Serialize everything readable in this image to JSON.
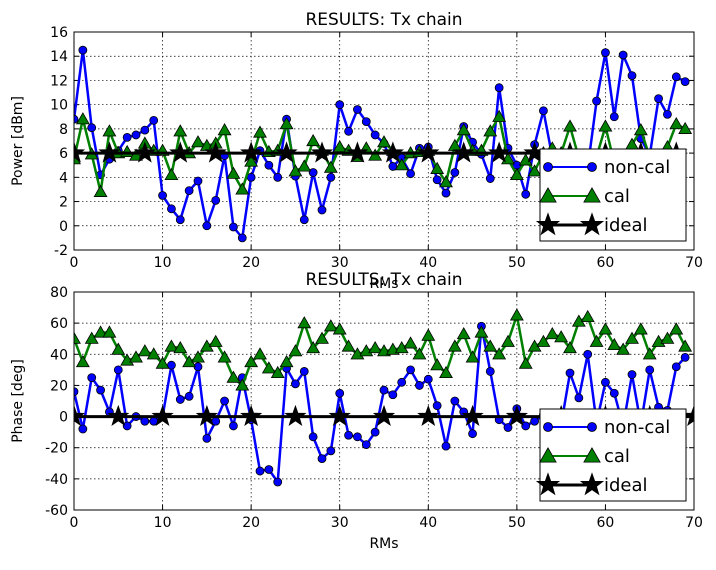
{
  "chart_data": [
    {
      "type": "line",
      "title": "RESULTS: Tx chain",
      "xlabel": "RMs",
      "ylabel": "Power [dBm]",
      "xlim": [
        0,
        70
      ],
      "ylim": [
        -2,
        16
      ],
      "xticks": [
        0,
        10,
        20,
        30,
        40,
        50,
        60,
        70
      ],
      "yticks": [
        -2,
        0,
        2,
        4,
        6,
        8,
        10,
        12,
        14,
        16
      ],
      "grid": true,
      "legend": "lower-right",
      "series": [
        {
          "name": "non-cal",
          "color": "#0000ff",
          "marker": "circle",
          "x": [
            0,
            1,
            2,
            3,
            4,
            5,
            6,
            7,
            8,
            9,
            10,
            11,
            12,
            13,
            14,
            15,
            16,
            17,
            18,
            19,
            20,
            21,
            22,
            23,
            24,
            25,
            26,
            27,
            28,
            29,
            30,
            31,
            32,
            33,
            34,
            35,
            36,
            37,
            38,
            39,
            40,
            41,
            42,
            43,
            44,
            45,
            46,
            47,
            48,
            49,
            50,
            51,
            52,
            53,
            54,
            55,
            56,
            57,
            58,
            59,
            60,
            61,
            62,
            63,
            64,
            65,
            66,
            67,
            68,
            69
          ],
          "y": [
            8.8,
            14.5,
            8.1,
            4.2,
            5.5,
            6.2,
            7.3,
            7.5,
            7.9,
            8.7,
            2.5,
            1.4,
            0.5,
            2.9,
            3.7,
            0.0,
            2.1,
            5.8,
            -0.1,
            -1.0,
            4.0,
            6.2,
            5.0,
            4.0,
            8.8,
            4.1,
            0.5,
            4.4,
            1.3,
            4.0,
            10.0,
            7.8,
            9.6,
            8.6,
            7.5,
            6.8,
            4.9,
            5.6,
            4.3,
            6.4,
            6.5,
            3.8,
            2.7,
            4.4,
            8.2,
            6.9,
            5.9,
            3.9,
            11.4,
            6.4,
            5.0,
            2.6,
            6.7,
            9.5,
            5.7,
            4.5,
            6.0,
            5.0,
            4.8,
            10.3,
            14.3,
            9.0,
            14.1,
            12.4,
            7.2,
            5.8,
            10.5,
            9.2,
            12.3,
            11.9
          ]
        },
        {
          "name": "cal",
          "color": "#008000",
          "marker": "triangle",
          "x": [
            0,
            1,
            2,
            3,
            4,
            5,
            6,
            7,
            8,
            9,
            10,
            11,
            12,
            13,
            14,
            15,
            16,
            17,
            18,
            19,
            20,
            21,
            22,
            23,
            24,
            25,
            26,
            27,
            28,
            29,
            30,
            31,
            32,
            33,
            34,
            35,
            36,
            37,
            38,
            39,
            40,
            41,
            42,
            43,
            44,
            45,
            46,
            47,
            48,
            49,
            50,
            51,
            52,
            53,
            54,
            55,
            56,
            57,
            58,
            59,
            60,
            61,
            62,
            63,
            64,
            65,
            66,
            67,
            68,
            69
          ],
          "y": [
            5.5,
            8.8,
            5.9,
            2.8,
            7.8,
            6.0,
            6.1,
            5.8,
            6.8,
            6.2,
            6.2,
            4.2,
            7.8,
            6.0,
            6.9,
            6.6,
            6.8,
            7.9,
            4.3,
            3.0,
            5.3,
            7.7,
            6.1,
            6.2,
            8.4,
            4.5,
            4.9,
            7.0,
            6.2,
            4.8,
            6.5,
            6.2,
            5.7,
            6.4,
            5.8,
            6.9,
            6.2,
            5.0,
            6.0,
            6.1,
            6.2,
            4.7,
            3.6,
            6.6,
            7.9,
            6.2,
            6.2,
            7.8,
            9.0,
            5.5,
            4.2,
            5.4,
            4.5,
            6.0,
            6.4,
            6.0,
            8.2,
            5.6,
            4.9,
            5.7,
            8.2,
            5.2,
            5.7,
            6.7,
            7.9,
            5.7,
            5.8,
            6.5,
            8.4,
            8.0
          ]
        },
        {
          "name": "ideal",
          "color": "#000000",
          "marker": "star",
          "x": [
            0,
            4,
            8,
            12,
            16,
            20,
            24,
            28,
            32,
            36,
            40,
            44,
            48,
            52,
            56,
            60,
            64,
            68
          ],
          "y": [
            6,
            6,
            6,
            6,
            6,
            6,
            6,
            6,
            6,
            6,
            6,
            6,
            6,
            6,
            6,
            6,
            6,
            6
          ]
        }
      ]
    },
    {
      "type": "line",
      "title": "RESULTS: Tx chain",
      "xlabel": "RMs",
      "ylabel": "Phase [deg]",
      "xlim": [
        0,
        70
      ],
      "ylim": [
        -60,
        80
      ],
      "xticks": [
        0,
        10,
        20,
        30,
        40,
        50,
        60,
        70
      ],
      "yticks": [
        -60,
        -40,
        -20,
        0,
        20,
        40,
        60,
        80
      ],
      "grid": true,
      "legend": "lower-right",
      "series": [
        {
          "name": "non-cal",
          "color": "#0000ff",
          "marker": "circle",
          "x": [
            0,
            1,
            2,
            3,
            4,
            5,
            6,
            7,
            8,
            9,
            10,
            11,
            12,
            13,
            14,
            15,
            16,
            17,
            18,
            19,
            20,
            21,
            22,
            23,
            24,
            25,
            26,
            27,
            28,
            29,
            30,
            31,
            32,
            33,
            34,
            35,
            36,
            37,
            38,
            39,
            40,
            41,
            42,
            43,
            44,
            45,
            46,
            47,
            48,
            49,
            50,
            51,
            52,
            53,
            54,
            55,
            56,
            57,
            58,
            59,
            60,
            61,
            62,
            63,
            64,
            65,
            66,
            67,
            68,
            69
          ],
          "y": [
            16,
            -8,
            25,
            17,
            3,
            30,
            -6,
            0,
            -3,
            -3,
            0,
            33,
            11,
            13,
            32,
            -14,
            -3,
            10,
            -6,
            25,
            -2,
            -35,
            -34,
            -42,
            31,
            21,
            29,
            -13,
            -27,
            -22,
            15,
            -12,
            -13,
            -18,
            -10,
            17,
            14,
            22,
            30,
            20,
            24,
            7,
            -19,
            10,
            3,
            -11,
            58,
            29,
            -2,
            -7,
            5,
            -6,
            -3,
            1,
            -2,
            -5,
            28,
            12,
            40,
            -4,
            22,
            15,
            -6,
            27,
            -5,
            30,
            6,
            4,
            32,
            38
          ]
        },
        {
          "name": "cal",
          "color": "#008000",
          "marker": "triangle",
          "x": [
            0,
            1,
            2,
            3,
            4,
            5,
            6,
            7,
            8,
            9,
            10,
            11,
            12,
            13,
            14,
            15,
            16,
            17,
            18,
            19,
            20,
            21,
            22,
            23,
            24,
            25,
            26,
            27,
            28,
            29,
            30,
            31,
            32,
            33,
            34,
            35,
            36,
            37,
            38,
            39,
            40,
            41,
            42,
            43,
            44,
            45,
            46,
            47,
            48,
            49,
            50,
            51,
            52,
            53,
            54,
            55,
            56,
            57,
            58,
            59,
            60,
            61,
            62,
            63,
            64,
            65,
            66,
            67,
            68,
            69
          ],
          "y": [
            50,
            35,
            50,
            54,
            54,
            43,
            36,
            38,
            42,
            40,
            34,
            45,
            44,
            35,
            38,
            45,
            48,
            38,
            25,
            20,
            35,
            40,
            31,
            28,
            35,
            42,
            60,
            44,
            50,
            58,
            56,
            45,
            40,
            42,
            44,
            42,
            43,
            44,
            47,
            40,
            52,
            33,
            28,
            45,
            53,
            38,
            54,
            45,
            40,
            48,
            65,
            34,
            45,
            48,
            53,
            51,
            44,
            61,
            64,
            48,
            56,
            46,
            43,
            50,
            56,
            40,
            48,
            50,
            56,
            45
          ]
        },
        {
          "name": "ideal",
          "color": "#000000",
          "marker": "star",
          "x": [
            0,
            5,
            10,
            15,
            20,
            25,
            30,
            35,
            40,
            45,
            50,
            55,
            60,
            65,
            70
          ],
          "y": [
            0,
            0,
            0,
            0,
            0,
            0,
            0,
            0,
            0,
            0,
            0,
            0,
            0,
            0,
            0
          ]
        }
      ]
    }
  ]
}
